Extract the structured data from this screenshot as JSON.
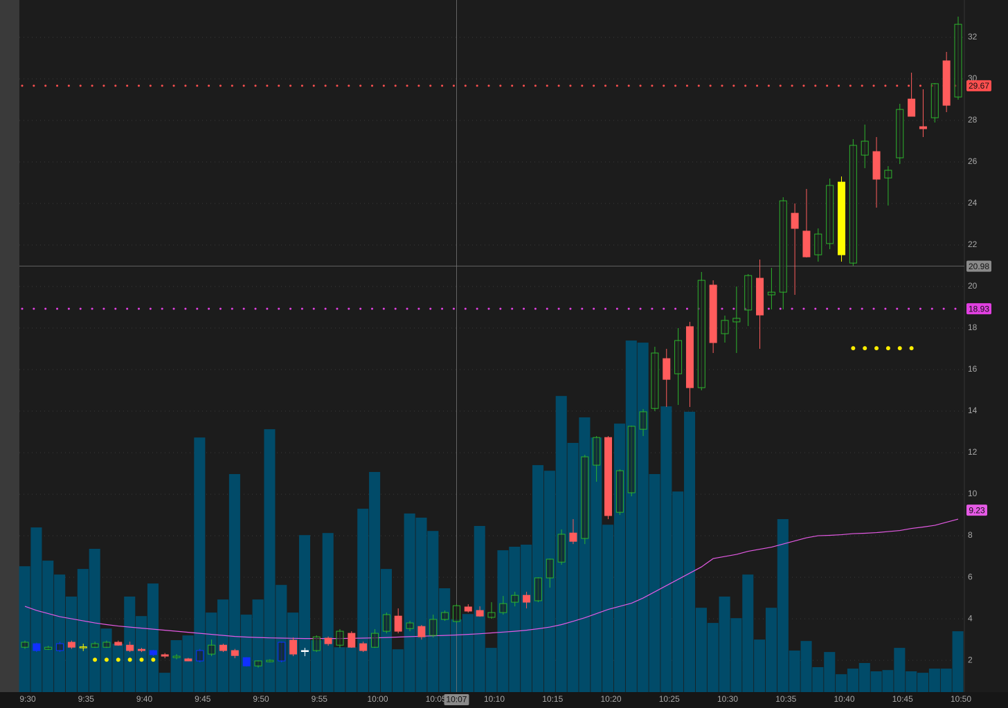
{
  "chart_data": {
    "type": "candlestick",
    "categories": [
      "9:30",
      null,
      null,
      null,
      null,
      "9:35",
      null,
      null,
      null,
      null,
      "9:40",
      null,
      null,
      null,
      null,
      "9:45",
      null,
      null,
      null,
      null,
      "9:50",
      null,
      null,
      null,
      null,
      "9:55",
      null,
      null,
      null,
      null,
      "10:00",
      null,
      null,
      null,
      null,
      "10:05",
      null,
      null,
      null,
      null,
      "10:10",
      null,
      null,
      null,
      null,
      "10:15",
      null,
      null,
      null,
      null,
      "10:20",
      null,
      null,
      null,
      null,
      "10:25",
      null,
      null,
      null,
      null,
      "10:30",
      null,
      null,
      null,
      null,
      "10:35",
      null,
      null,
      null,
      null,
      "10:40",
      null,
      null,
      null,
      null,
      "10:45",
      null,
      null,
      null,
      null,
      "10:50"
    ],
    "open": [
      2.63,
      2.8,
      2.53,
      2.47,
      2.87,
      2.62,
      2.63,
      2.63,
      2.87,
      2.73,
      2.53,
      2.47,
      2.27,
      2.13,
      2.07,
      1.97,
      2.3,
      2.73,
      2.47,
      2.13,
      1.73,
      1.93,
      1.97,
      2.97,
      2.47,
      2.47,
      3.07,
      2.73,
      3.3,
      2.8,
      2.63,
      3.4,
      4.13,
      3.53,
      3.63,
      3.2,
      3.97,
      3.87,
      4.57,
      4.4,
      4.07,
      4.3,
      4.8,
      5.13,
      4.87,
      5.97,
      6.73,
      8.13,
      7.87,
      11.4,
      12.73,
      9.13,
      10.07,
      13.13,
      14.13,
      16.53,
      15.8,
      18.07,
      15.13,
      20.07,
      17.73,
      18.3,
      18.87,
      20.4,
      19.6,
      19.73,
      23.53,
      22.67,
      21.53,
      22.07,
      25.03,
      21.13,
      26.33,
      26.5,
      25.23,
      26.2,
      29.03,
      27.7,
      28.13,
      30.87,
      29.13
    ],
    "high": [
      2.95,
      2.85,
      2.7,
      2.9,
      2.95,
      2.8,
      2.9,
      2.95,
      2.95,
      2.9,
      2.6,
      2.5,
      2.35,
      2.3,
      2.12,
      2.55,
      3.0,
      2.8,
      2.55,
      2.15,
      2.0,
      2.05,
      2.9,
      3.1,
      2.6,
      3.2,
      3.15,
      3.5,
      3.4,
      2.9,
      3.5,
      4.3,
      4.5,
      3.9,
      3.7,
      4.2,
      4.4,
      4.7,
      4.7,
      4.6,
      4.8,
      5.1,
      5.3,
      5.3,
      6.0,
      6.9,
      8.3,
      8.8,
      11.9,
      12.8,
      12.8,
      11.2,
      13.3,
      14.1,
      17.1,
      17.0,
      18.0,
      18.3,
      20.7,
      20.3,
      18.6,
      20.0,
      20.6,
      21.3,
      20.9,
      24.3,
      24.0,
      24.7,
      22.8,
      25.2,
      25.3,
      27.1,
      27.8,
      27.2,
      25.8,
      28.8,
      30.3,
      29.5,
      29.8,
      31.3,
      33.0
    ],
    "low": [
      2.55,
      2.4,
      2.5,
      2.4,
      2.55,
      2.45,
      2.6,
      2.6,
      2.7,
      2.4,
      2.4,
      2.2,
      2.1,
      2.05,
      1.95,
      1.9,
      2.2,
      2.4,
      2.1,
      1.7,
      1.65,
      1.9,
      1.9,
      2.2,
      2.2,
      2.4,
      2.7,
      2.6,
      2.6,
      2.4,
      2.6,
      3.3,
      3.3,
      3.4,
      3.0,
      3.1,
      3.9,
      3.8,
      4.3,
      4.1,
      4.0,
      4.2,
      4.6,
      4.5,
      4.8,
      5.5,
      6.6,
      7.6,
      7.6,
      10.6,
      8.8,
      9.0,
      9.9,
      12.8,
      14.0,
      14.2,
      14.3,
      14.2,
      15.0,
      16.8,
      17.3,
      16.8,
      18.1,
      17.0,
      18.9,
      18.9,
      19.6,
      21.4,
      21.2,
      21.8,
      21.2,
      21.0,
      25.7,
      23.8,
      23.9,
      25.9,
      28.2,
      27.2,
      27.9,
      28.4,
      29.0
    ],
    "close": [
      2.87,
      2.47,
      2.63,
      2.8,
      2.63,
      2.65,
      2.8,
      2.87,
      2.73,
      2.47,
      2.47,
      2.27,
      2.2,
      2.2,
      1.97,
      2.47,
      2.73,
      2.47,
      2.23,
      1.73,
      1.97,
      2.0,
      2.87,
      2.3,
      2.47,
      3.13,
      2.8,
      3.4,
      2.63,
      2.47,
      3.3,
      4.2,
      3.4,
      3.8,
      3.13,
      3.97,
      4.3,
      4.63,
      4.37,
      4.13,
      4.3,
      4.73,
      5.13,
      4.8,
      5.97,
      6.87,
      8.07,
      7.73,
      11.8,
      12.73,
      8.97,
      11.13,
      13.27,
      13.97,
      16.8,
      15.53,
      17.4,
      15.13,
      20.3,
      17.3,
      18.37,
      18.47,
      20.53,
      18.63,
      19.73,
      24.13,
      22.8,
      21.43,
      22.53,
      24.87,
      21.53,
      26.8,
      27.0,
      25.17,
      25.6,
      28.53,
      28.2,
      27.6,
      29.77,
      28.73,
      32.63
    ],
    "colors": [
      "#2db52d",
      "#1030ff",
      "#2db52d",
      "#1030ff",
      "#ff5c5c",
      "#ffff00",
      "#2db52d",
      "#2db52d",
      "#ff5c5c",
      "#ff5c5c",
      "#ff5c5c",
      "#1030ff",
      "#ff5c5c",
      "#2db52d",
      "#ff5c5c",
      "#1030ff",
      "#2db52d",
      "#ff5c5c",
      "#ff5c5c",
      "#1030ff",
      "#2db52d",
      "#2db52d",
      "#1030ff",
      "#ff5c5c",
      "#ffffff",
      "#2db52d",
      "#ff5c5c",
      "#2db52d",
      "#ff5c5c",
      "#ff5c5c",
      "#2db52d",
      "#2db52d",
      "#ff5c5c",
      "#2db52d",
      "#ff5c5c",
      "#2db52d",
      "#2db52d",
      "#2db52d",
      "#ff5c5c",
      "#ff5c5c",
      "#2db52d",
      "#2db52d",
      "#2db52d",
      "#ff5c5c",
      "#2db52d",
      "#2db52d",
      "#2db52d",
      "#ff5c5c",
      "#2db52d",
      "#2db52d",
      "#ff5c5c",
      "#2db52d",
      "#2db52d",
      "#2db52d",
      "#2db52d",
      "#ff5c5c",
      "#2db52d",
      "#ff5c5c",
      "#2db52d",
      "#ff5c5c",
      "#2db52d",
      "#2db52d",
      "#2db52d",
      "#ff5c5c",
      "#2db52d",
      "#2db52d",
      "#ff5c5c",
      "#ff5c5c",
      "#2db52d",
      "#2db52d",
      "#ffff00",
      "#2db52d",
      "#2db52d",
      "#ff5c5c",
      "#2db52d",
      "#2db52d",
      "#ff5c5c",
      "#ff5c5c",
      "#2db52d",
      "#ff5c5c",
      "#2db52d"
    ],
    "volume": {
      "color": "#014b69",
      "values": [
        6.53,
        8.4,
        6.8,
        6.13,
        5.07,
        6.4,
        7.37,
        3.53,
        2.8,
        5.07,
        4.13,
        5.7,
        1.4,
        2.97,
        3.2,
        12.73,
        4.3,
        4.93,
        10.97,
        4.2,
        4.93,
        13.13,
        5.63,
        4.3,
        8.03,
        2.97,
        8.13,
        2.63,
        2.63,
        9.3,
        11.07,
        6.4,
        2.53,
        9.07,
        8.87,
        8.23,
        5.47,
        3.97,
        4.23,
        8.47,
        2.6,
        7.3,
        7.47,
        7.57,
        11.4,
        11.13,
        14.73,
        12.47,
        13.7,
        12.73,
        8.53,
        13.4,
        17.4,
        17.3,
        10.97,
        14.23,
        10.13,
        13.97,
        4.53,
        3.8,
        5.07,
        4.03,
        6.13,
        3.0,
        4.53,
        8.8,
        2.47,
        2.93,
        1.67,
        2.4,
        1.33,
        1.6,
        1.87,
        1.47,
        1.53,
        2.6,
        1.47,
        1.4,
        1.6,
        1.6,
        3.4
      ]
    },
    "ma": {
      "color": "#e55ae5",
      "label": 9.23,
      "values": [
        4.6,
        4.4,
        4.25,
        4.1,
        4.0,
        3.9,
        3.8,
        3.72,
        3.65,
        3.6,
        3.55,
        3.5,
        3.45,
        3.4,
        3.35,
        3.3,
        3.25,
        3.2,
        3.15,
        3.12,
        3.1,
        3.08,
        3.07,
        3.06,
        3.05,
        3.05,
        3.05,
        3.05,
        3.06,
        3.07,
        3.08,
        3.1,
        3.12,
        3.14,
        3.16,
        3.18,
        3.2,
        3.22,
        3.25,
        3.28,
        3.32,
        3.36,
        3.4,
        3.45,
        3.52,
        3.6,
        3.72,
        3.88,
        4.05,
        4.25,
        4.45,
        4.6,
        4.75,
        5.0,
        5.3,
        5.6,
        5.9,
        6.2,
        6.5,
        6.9,
        7.0,
        7.1,
        7.25,
        7.35,
        7.45,
        7.6,
        7.75,
        7.9,
        8.0,
        8.02,
        8.05,
        8.1,
        8.12,
        8.15,
        8.2,
        8.25,
        8.35,
        8.42,
        8.5,
        8.65,
        8.8
      ]
    },
    "dots": {
      "color": "#ffee00",
      "values": [
        null,
        null,
        null,
        null,
        null,
        null,
        2.03,
        2.03,
        2.03,
        2.03,
        2.03,
        2.03,
        null,
        null,
        null,
        null,
        null,
        null,
        null,
        null,
        null,
        null,
        null,
        null,
        null,
        null,
        null,
        null,
        null,
        null,
        null,
        null,
        null,
        null,
        null,
        null,
        null,
        null,
        null,
        null,
        null,
        null,
        null,
        null,
        null,
        null,
        null,
        null,
        null,
        null,
        null,
        null,
        null,
        null,
        null,
        null,
        null,
        null,
        null,
        null,
        null,
        null,
        null,
        null,
        null,
        null,
        null,
        null,
        null,
        null,
        null,
        17.03,
        17.03,
        17.03,
        17.03,
        17.03,
        17.03,
        null,
        null,
        null,
        null
      ]
    },
    "levels": [
      {
        "value": 29.67,
        "color": "#ff4f4f"
      },
      {
        "value": 18.93,
        "color": "#e040e0"
      }
    ],
    "crosshair": {
      "x": "10:07",
      "y": 20.98
    },
    "ylim": [
      0.47,
      33.8
    ],
    "yticks": [
      2,
      4,
      6,
      8,
      10,
      12,
      14,
      16,
      18,
      20,
      22,
      24,
      26,
      28,
      30,
      32
    ],
    "grid": true
  }
}
